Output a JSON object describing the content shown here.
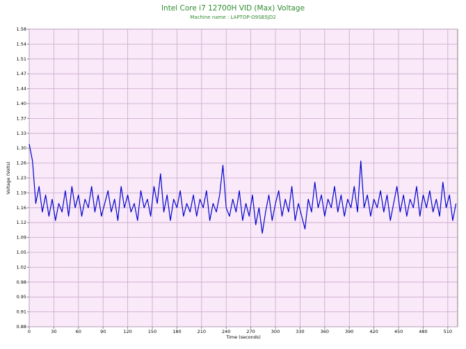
{
  "chart_data": {
    "type": "line",
    "title": "Intel Core i7 12700H VID (Max) Voltage",
    "subtitle": "Machine name : LAPTOP-O9SB5JD2",
    "x_label": "Time (seconds)",
    "y_label": "Voltage (Volts)",
    "color": "#0000cc",
    "grid": true,
    "xlim": [
      0,
      522
    ],
    "ylim": [
      0.88,
      1.58
    ],
    "xticks": [
      0,
      30,
      60,
      90,
      120,
      150,
      180,
      210,
      240,
      270,
      300,
      330,
      360,
      390,
      420,
      450,
      480,
      510
    ],
    "yticks": [
      0.88,
      {
        "value": 0.915,
        "label": "0.91"
      },
      0.95,
      {
        "value": 0.985,
        "label": "0.98"
      },
      1.02,
      {
        "value": 1.055,
        "label": "1.05"
      },
      1.09,
      {
        "value": 1.125,
        "label": "1.12"
      },
      1.16,
      {
        "value": 1.195,
        "label": "1.19"
      },
      1.23,
      {
        "value": 1.265,
        "label": "1.26"
      },
      {
        "value": 1.3,
        "label": "1.30"
      },
      {
        "value": 1.335,
        "label": "1.33"
      },
      1.37,
      {
        "value": 1.405,
        "label": "1.40"
      },
      1.44,
      {
        "value": 1.475,
        "label": "1.47"
      },
      1.51,
      {
        "value": 1.545,
        "label": "1.54"
      },
      1.58
    ],
    "x": [
      0,
      4,
      8,
      12,
      16,
      20,
      24,
      28,
      32,
      36,
      40,
      44,
      48,
      52,
      56,
      60,
      64,
      68,
      72,
      76,
      80,
      84,
      88,
      92,
      96,
      100,
      104,
      108,
      112,
      116,
      120,
      124,
      128,
      132,
      136,
      140,
      144,
      148,
      152,
      156,
      160,
      164,
      168,
      172,
      176,
      180,
      184,
      188,
      192,
      196,
      200,
      204,
      208,
      212,
      216,
      220,
      224,
      228,
      232,
      236,
      240,
      244,
      248,
      252,
      256,
      260,
      264,
      268,
      272,
      276,
      280,
      284,
      288,
      292,
      296,
      300,
      304,
      308,
      312,
      316,
      320,
      324,
      328,
      332,
      336,
      340,
      344,
      348,
      352,
      356,
      360,
      364,
      368,
      372,
      376,
      380,
      384,
      388,
      392,
      396,
      400,
      404,
      408,
      412,
      416,
      420,
      424,
      428,
      432,
      436,
      440,
      444,
      448,
      452,
      456,
      460,
      464,
      468,
      472,
      476,
      480,
      484,
      488,
      492,
      496,
      500,
      504,
      508,
      512,
      516,
      520
    ],
    "values": [
      1.31,
      1.27,
      1.17,
      1.21,
      1.15,
      1.19,
      1.14,
      1.18,
      1.13,
      1.17,
      1.15,
      1.2,
      1.14,
      1.21,
      1.16,
      1.19,
      1.14,
      1.18,
      1.16,
      1.21,
      1.15,
      1.19,
      1.14,
      1.17,
      1.2,
      1.15,
      1.18,
      1.13,
      1.21,
      1.16,
      1.19,
      1.15,
      1.17,
      1.13,
      1.2,
      1.16,
      1.18,
      1.14,
      1.21,
      1.17,
      1.24,
      1.15,
      1.19,
      1.13,
      1.18,
      1.16,
      1.2,
      1.14,
      1.17,
      1.15,
      1.19,
      1.14,
      1.18,
      1.16,
      1.2,
      1.13,
      1.17,
      1.15,
      1.19,
      1.26,
      1.16,
      1.14,
      1.18,
      1.15,
      1.2,
      1.13,
      1.17,
      1.14,
      1.19,
      1.12,
      1.16,
      1.1,
      1.15,
      1.19,
      1.13,
      1.17,
      1.2,
      1.14,
      1.18,
      1.15,
      1.21,
      1.13,
      1.17,
      1.14,
      1.11,
      1.18,
      1.15,
      1.22,
      1.16,
      1.19,
      1.14,
      1.18,
      1.16,
      1.21,
      1.15,
      1.19,
      1.14,
      1.18,
      1.16,
      1.21,
      1.15,
      1.27,
      1.16,
      1.19,
      1.14,
      1.18,
      1.16,
      1.2,
      1.15,
      1.19,
      1.13,
      1.17,
      1.21,
      1.15,
      1.19,
      1.14,
      1.18,
      1.16,
      1.21,
      1.14,
      1.19,
      1.16,
      1.2,
      1.15,
      1.18,
      1.14,
      1.22,
      1.16,
      1.19,
      1.13,
      1.17
    ]
  }
}
